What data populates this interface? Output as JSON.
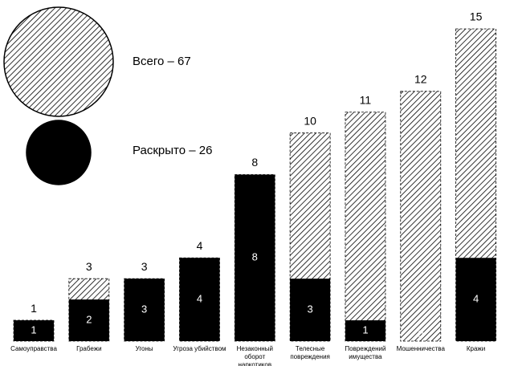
{
  "chart_data": {
    "type": "bar",
    "categories": [
      "Самоуправства",
      "Грабежи",
      "Угоны",
      "Угроза убийством",
      "Незаконный оборот наркотиков",
      "Телесные повреждения",
      "Повреждений имущества",
      "Мошенничества",
      "Кражи"
    ],
    "series": [
      {
        "name": "Всего – 67",
        "color": "#000000",
        "fill": "hatched",
        "values": [
          1,
          3,
          3,
          4,
          8,
          10,
          11,
          12,
          15
        ]
      },
      {
        "name": "Раскрыто – 26",
        "color": "#000000",
        "fill": "solid",
        "values": [
          1,
          2,
          3,
          4,
          8,
          3,
          1,
          0,
          4
        ]
      }
    ],
    "ylim": [
      0,
      15
    ],
    "grid": false
  }
}
